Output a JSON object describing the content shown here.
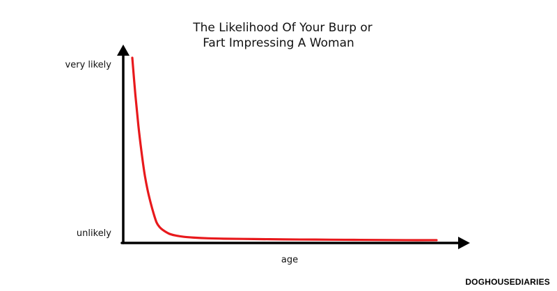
{
  "chart_data": {
    "type": "line",
    "title_lines": [
      "The Likelihood Of Your Burp or",
      "Fart Impressing A Woman"
    ],
    "xlabel": "age",
    "ylabel": "",
    "y_tick_labels": [
      "very likely",
      "unlikely"
    ],
    "grid": false,
    "legend": "none",
    "series": [
      {
        "color": "#e8191c",
        "x": [
          0,
          0.01,
          0.02,
          0.03,
          0.04,
          0.05,
          0.06,
          0.07,
          0.08,
          0.09,
          0.1,
          0.12,
          0.14,
          0.17,
          0.2,
          0.25,
          0.3,
          0.4,
          0.5,
          0.6,
          0.7,
          0.8,
          0.9,
          1.0
        ],
        "values": [
          1.0,
          0.8,
          0.63,
          0.49,
          0.37,
          0.28,
          0.21,
          0.15,
          0.1,
          0.075,
          0.06,
          0.04,
          0.03,
          0.022,
          0.018,
          0.014,
          0.012,
          0.01,
          0.008,
          0.007,
          0.006,
          0.005,
          0.004,
          0.004
        ]
      }
    ],
    "xlim": [
      0,
      1
    ],
    "ylim": [
      0,
      1
    ],
    "colors": {
      "axis": "#000000",
      "curve": "#e8191c"
    }
  },
  "credit": "DOGHOUSEDIARIES"
}
